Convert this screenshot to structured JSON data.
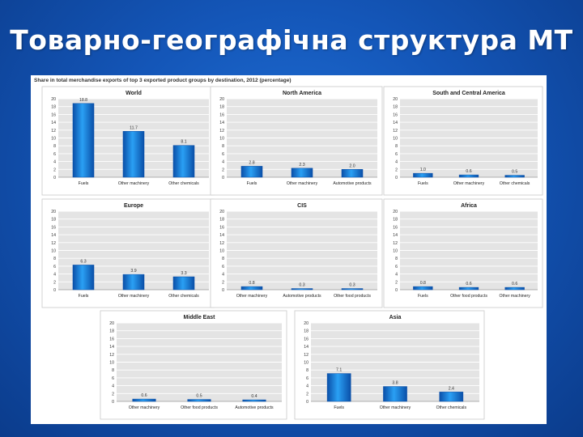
{
  "slide": {
    "title": "Товарно-географічна структура МТ"
  },
  "figure": {
    "caption": "Share in total merchandise exports of top 3 exported product groups by destination, 2012 (percentage)"
  },
  "colors": {
    "bar": "#1f8ee8",
    "bar_dark": "#0a4fa8",
    "plot_bg": "#e4e4e4",
    "grid": "#ffffff"
  },
  "chart_data": [
    {
      "type": "bar",
      "title": "World",
      "categories": [
        "Fuels",
        "Other machinery",
        "Other chemicals"
      ],
      "values": [
        18.8,
        11.7,
        8.1
      ],
      "ylim": [
        0,
        20
      ],
      "yticks": [
        "0",
        "2",
        "4",
        "6",
        "8",
        "10",
        "12",
        "14",
        "16",
        "18",
        "20"
      ],
      "data_labels": [
        "18.8",
        "11.7",
        "8.1"
      ],
      "grid": true
    },
    {
      "type": "bar",
      "title": "North America",
      "categories": [
        "Fuels",
        "Other machinery",
        "Automotive products"
      ],
      "values": [
        2.8,
        2.3,
        2.0
      ],
      "ylim": [
        0,
        20
      ],
      "yticks": [
        "0",
        "2",
        "4",
        "6",
        "8",
        "10",
        "12",
        "14",
        "16",
        "18",
        "20"
      ],
      "data_labels": [
        "2.8",
        "2.3",
        "2.0"
      ],
      "grid": true
    },
    {
      "type": "bar",
      "title": "South and Central America",
      "categories": [
        "Fuels",
        "Other machinery",
        "Other chemicals"
      ],
      "values": [
        1.0,
        0.6,
        0.5
      ],
      "ylim": [
        0,
        20
      ],
      "yticks": [
        "0",
        "2",
        "4",
        "6",
        "8",
        "10",
        "12",
        "14",
        "16",
        "18",
        "20"
      ],
      "data_labels": [
        "1.0",
        "0.6",
        "0.5"
      ],
      "grid": true
    },
    {
      "type": "bar",
      "title": "Europe",
      "categories": [
        "Fuels",
        "Other machinery",
        "Other chemicals"
      ],
      "values": [
        6.3,
        3.9,
        3.3
      ],
      "ylim": [
        0,
        20
      ],
      "yticks": [
        "0",
        "2",
        "4",
        "6",
        "8",
        "10",
        "12",
        "14",
        "16",
        "18",
        "20"
      ],
      "data_labels": [
        "6.3",
        "3.9",
        "3.3"
      ],
      "grid": true
    },
    {
      "type": "bar",
      "title": "CIS",
      "categories": [
        "Other machinery",
        "Automotive products",
        "Other food products"
      ],
      "values": [
        0.8,
        0.3,
        0.3
      ],
      "ylim": [
        0,
        20
      ],
      "yticks": [
        "0",
        "2",
        "4",
        "6",
        "8",
        "10",
        "12",
        "14",
        "16",
        "18",
        "20"
      ],
      "data_labels": [
        "0.8",
        "0.3",
        "0.3"
      ],
      "grid": true
    },
    {
      "type": "bar",
      "title": "Africa",
      "categories": [
        "Fuels",
        "Other food products",
        "Other machinery"
      ],
      "values": [
        0.8,
        0.6,
        0.6
      ],
      "ylim": [
        0,
        20
      ],
      "yticks": [
        "0",
        "2",
        "4",
        "6",
        "8",
        "10",
        "12",
        "14",
        "16",
        "18",
        "20"
      ],
      "data_labels": [
        "0.8",
        "0.6",
        "0.6"
      ],
      "grid": true
    },
    {
      "type": "bar",
      "title": "Middle East",
      "categories": [
        "Other machinery",
        "Other food products",
        "Automotive products"
      ],
      "values": [
        0.6,
        0.5,
        0.4
      ],
      "ylim": [
        0,
        20
      ],
      "yticks": [
        "0",
        "2",
        "4",
        "6",
        "8",
        "10",
        "12",
        "14",
        "16",
        "18",
        "20"
      ],
      "data_labels": [
        "0.6",
        "0.5",
        "0.4"
      ],
      "grid": true
    },
    {
      "type": "bar",
      "title": "Asia",
      "categories": [
        "Fuels",
        "Other machinery",
        "Other chemicals"
      ],
      "values": [
        7.1,
        3.8,
        2.4
      ],
      "ylim": [
        0,
        20
      ],
      "yticks": [
        "0",
        "2",
        "4",
        "6",
        "8",
        "10",
        "12",
        "14",
        "16",
        "18",
        "20"
      ],
      "data_labels": [
        "7.1",
        "3.8",
        "2.4"
      ],
      "grid": true
    }
  ]
}
